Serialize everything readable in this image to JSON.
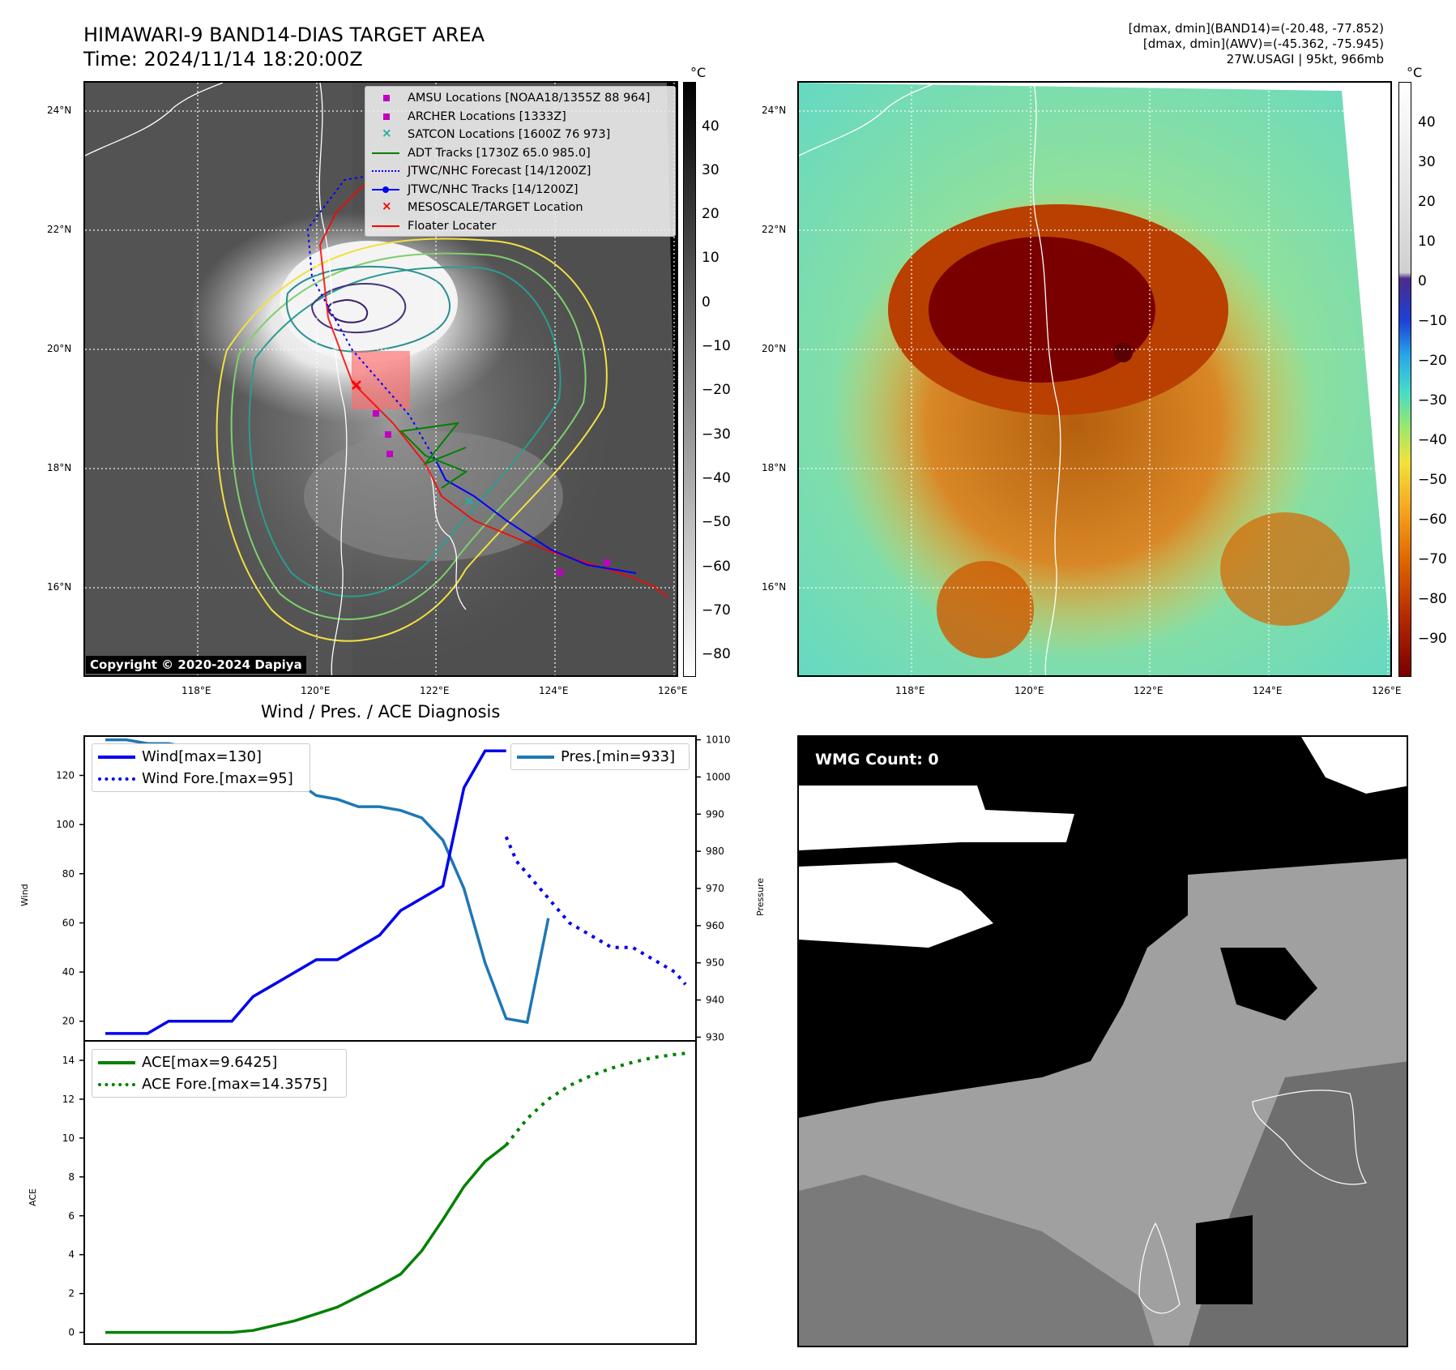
{
  "header": {
    "title_line1": "HIMAWARI-9 BAND14-DIAS TARGET AREA",
    "title_line2": "Time: 2024/11/14 18:20:00Z",
    "info_line1": "[dmax, dmin](BAND14)=(-20.48, -77.852)",
    "info_line2": "[dmax, dmin](AWV)=(-45.362, -75.945)",
    "info_line3": "27W.USAGI | 95kt, 966mb"
  },
  "maps": {
    "lat_labels": [
      "24°N",
      "22°N",
      "20°N",
      "18°N",
      "16°N"
    ],
    "lon_labels": [
      "118°E",
      "120°E",
      "122°E",
      "124°E",
      "126°E"
    ],
    "copyright": "Copyright © 2020-2024 Dapiya",
    "colorbar_unit": "°C",
    "ir_colorbar_ticks": [
      "40",
      "30",
      "20",
      "10",
      "0",
      "−10",
      "−20",
      "−30",
      "−40",
      "−50",
      "−60",
      "−70",
      "−80"
    ],
    "enh_colorbar_ticks": [
      "40",
      "30",
      "20",
      "10",
      "0",
      "−10",
      "−20",
      "−30",
      "−40",
      "−50",
      "−60",
      "−70",
      "−80",
      "−90"
    ],
    "legend": [
      {
        "label": "AMSU Locations [NOAA18/1355Z 88 964]",
        "color": "#c000c0",
        "symbol": "square"
      },
      {
        "label": "ARCHER Locations [1333Z]",
        "color": "#c000c0",
        "symbol": "square"
      },
      {
        "label": "SATCON Locations [1600Z 76 973]",
        "color": "#20b0a0",
        "symbol": "x"
      },
      {
        "label": "ADT Tracks [1730Z 65.0 985.0]",
        "color": "#008000",
        "symbol": "line"
      },
      {
        "label": "JTWC/NHC Forecast [14/1200Z]",
        "color": "#0000ff",
        "symbol": "dotted"
      },
      {
        "label": "JTWC/NHC Tracks [14/1200Z]",
        "color": "#0000ff",
        "symbol": "line-dot"
      },
      {
        "label": "MESOSCALE/TARGET Location",
        "color": "#ff0000",
        "symbol": "x"
      },
      {
        "label": "Floater Locater",
        "color": "#ff0000",
        "symbol": "line"
      }
    ]
  },
  "diagnosis": {
    "title": "Wind / Pres. / ACE Diagnosis",
    "wind_ylabel": "Wind",
    "pres_ylabel": "Pressure",
    "ace_ylabel": "ACE",
    "wind_legend": [
      "Wind[max=130]",
      "Wind Fore.[max=95]"
    ],
    "pres_legend": "Pres.[min=933]",
    "ace_legend": [
      "ACE[max=9.6425]",
      "ACE Fore.[max=14.3575]"
    ],
    "wmg_label": "WMG Count: 0",
    "colors": {
      "wind": "#0000ee",
      "pres": "#1f77b4",
      "ace": "#008000"
    }
  },
  "chart_data": [
    {
      "type": "line",
      "title": "Wind / Pres. / ACE Diagnosis",
      "ylabel": "Wind",
      "ylim": [
        12,
        136
      ],
      "yticks": [
        20,
        40,
        60,
        80,
        100,
        120
      ],
      "xlim": [
        -1,
        28
      ],
      "series": [
        {
          "name": "Wind[max=130]",
          "style": "solid",
          "x": [
            0,
            1,
            2,
            3,
            4,
            5,
            6,
            7,
            8,
            9,
            10,
            11,
            12,
            13,
            14,
            15,
            16,
            17,
            18,
            19
          ],
          "values": [
            15,
            15,
            15,
            20,
            20,
            20,
            20,
            30,
            35,
            40,
            45,
            45,
            50,
            55,
            65,
            70,
            75,
            115,
            130,
            130
          ]
        },
        {
          "name": "Wind Fore.[max=95]",
          "style": "dotted",
          "x": [
            19,
            19.5,
            20,
            21,
            22,
            23,
            24,
            25,
            26,
            27,
            27.5
          ],
          "values": [
            95,
            85,
            80,
            70,
            60,
            55,
            50,
            50,
            45,
            40,
            35
          ]
        }
      ],
      "secondary": {
        "ylabel": "Pressure",
        "ylim": [
          929,
          1011
        ],
        "yticks": [
          930,
          940,
          950,
          960,
          970,
          980,
          990,
          1000,
          1010
        ],
        "series": [
          {
            "name": "Pres.[min=933]",
            "x": [
              0,
              1,
              2,
              3,
              4,
              5,
              6,
              7,
              8,
              9,
              10,
              11,
              12,
              13,
              14,
              15,
              16,
              17,
              18,
              19,
              20,
              21
            ],
            "values": [
              1010,
              1010,
              1009,
              1009,
              1008,
              1007,
              1006,
              1004,
              1002,
              999,
              995,
              994,
              992,
              992,
              991,
              989,
              983,
              970,
              950,
              935,
              934,
              962
            ]
          }
        ]
      }
    },
    {
      "type": "line",
      "ylabel": "ACE",
      "ylim": [
        -0.6,
        15
      ],
      "yticks": [
        0,
        2,
        4,
        6,
        8,
        10,
        12,
        14
      ],
      "xlim": [
        -1,
        28
      ],
      "series": [
        {
          "name": "ACE[max=9.6425]",
          "style": "solid",
          "x": [
            0,
            1,
            2,
            3,
            4,
            5,
            6,
            7,
            8,
            9,
            10,
            11,
            12,
            13,
            14,
            15,
            16,
            17,
            18,
            19
          ],
          "values": [
            0,
            0,
            0,
            0,
            0,
            0,
            0,
            0.1,
            0.35,
            0.6,
            0.95,
            1.3,
            1.85,
            2.4,
            3.0,
            4.2,
            5.8,
            7.5,
            8.8,
            9.64
          ]
        },
        {
          "name": "ACE Fore.[max=14.3575]",
          "style": "dotted",
          "x": [
            19,
            20,
            21,
            22,
            23,
            24,
            25,
            26,
            27,
            27.5
          ],
          "values": [
            9.64,
            11.0,
            12.0,
            12.7,
            13.2,
            13.6,
            13.9,
            14.15,
            14.3,
            14.36
          ]
        }
      ]
    }
  ]
}
